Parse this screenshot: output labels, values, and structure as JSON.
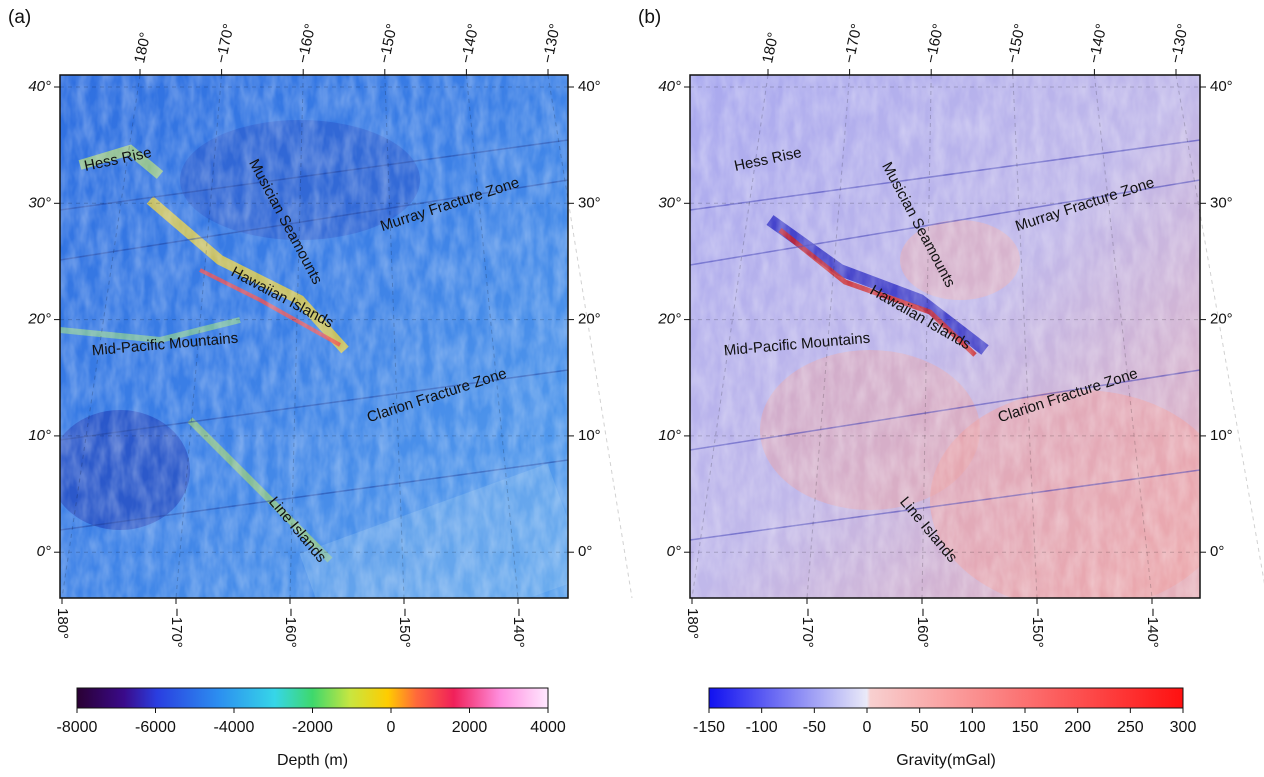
{
  "panels": [
    {
      "label": "(a)",
      "top_ticks": [
        {
          "value": 180,
          "label": "180°"
        },
        {
          "value": -170,
          "label": "−170°"
        },
        {
          "value": -160,
          "label": "−160°"
        },
        {
          "value": -150,
          "label": "−150°"
        },
        {
          "value": -140,
          "label": "−140°"
        },
        {
          "value": -130,
          "label": "−130°"
        }
      ],
      "left_ticks": [
        {
          "value": 40,
          "label": "40°"
        },
        {
          "value": 30,
          "label": "30°"
        },
        {
          "value": 20,
          "label": "20°"
        },
        {
          "value": 10,
          "label": "10°"
        },
        {
          "value": 0,
          "label": "0°"
        }
      ],
      "right_ticks": [
        {
          "value": 40,
          "label": "40°"
        },
        {
          "value": 30,
          "label": "30°"
        },
        {
          "value": 20,
          "label": "20°"
        },
        {
          "value": 10,
          "label": "10°"
        },
        {
          "value": 0,
          "label": "0°"
        }
      ],
      "bottom_ticks": [
        {
          "value": 180,
          "label": "180°"
        },
        {
          "value": -170,
          "label": "−170°"
        },
        {
          "value": -160,
          "label": "−160°"
        },
        {
          "value": -150,
          "label": "−150°"
        },
        {
          "value": -140,
          "label": "−140°"
        }
      ],
      "features": [
        "Hess Rise",
        "Musician Seamounts",
        "Murray Fracture Zone",
        "Hawaiian Islands",
        "Mid-Pacific Mountains",
        "Clarion Fracture Zone",
        "Line Islands"
      ],
      "colorbar": {
        "label": "Depth (m)",
        "ticks": [
          -8000,
          -6000,
          -4000,
          -2000,
          0,
          2000,
          4000
        ]
      }
    },
    {
      "label": "(b)",
      "top_ticks": [
        {
          "value": 180,
          "label": "180°"
        },
        {
          "value": -170,
          "label": "−170°"
        },
        {
          "value": -160,
          "label": "−160°"
        },
        {
          "value": -150,
          "label": "−150°"
        },
        {
          "value": -140,
          "label": "−140°"
        },
        {
          "value": -130,
          "label": "−130°"
        }
      ],
      "left_ticks": [
        {
          "value": 40,
          "label": "40°"
        },
        {
          "value": 30,
          "label": "30°"
        },
        {
          "value": 20,
          "label": "20°"
        },
        {
          "value": 10,
          "label": "10°"
        },
        {
          "value": 0,
          "label": "0°"
        }
      ],
      "right_ticks": [
        {
          "value": 40,
          "label": "40°"
        },
        {
          "value": 30,
          "label": "30°"
        },
        {
          "value": 20,
          "label": "20°"
        },
        {
          "value": 10,
          "label": "10°"
        },
        {
          "value": 0,
          "label": "0°"
        }
      ],
      "bottom_ticks": [
        {
          "value": 180,
          "label": "180°"
        },
        {
          "value": -170,
          "label": "−170°"
        },
        {
          "value": -160,
          "label": "−160°"
        },
        {
          "value": -150,
          "label": "−150°"
        },
        {
          "value": -140,
          "label": "−140°"
        }
      ],
      "features": [
        "Hess Rise",
        "Musician Seamounts",
        "Murray Fracture Zone",
        "Hawaiian Islands",
        "Mid-Pacific Mountains",
        "Clarion Fracture Zone",
        "Line Islands"
      ],
      "colorbar": {
        "label": "Gravity(mGal)",
        "ticks": [
          -150,
          -100,
          -50,
          0,
          50,
          100,
          150,
          200,
          250,
          300
        ]
      }
    }
  ]
}
